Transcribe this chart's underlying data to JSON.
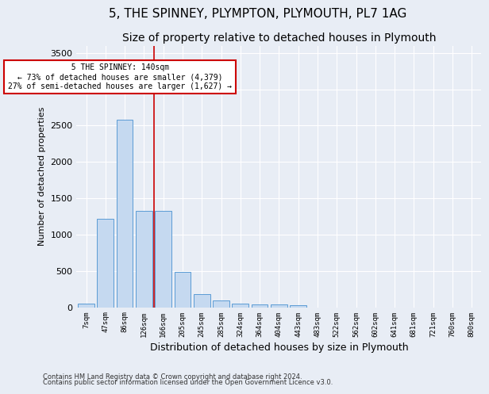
{
  "title1": "5, THE SPINNEY, PLYMPTON, PLYMOUTH, PL7 1AG",
  "title2": "Size of property relative to detached houses in Plymouth",
  "xlabel": "Distribution of detached houses by size in Plymouth",
  "ylabel": "Number of detached properties",
  "bar_labels": [
    "7sqm",
    "47sqm",
    "86sqm",
    "126sqm",
    "166sqm",
    "205sqm",
    "245sqm",
    "285sqm",
    "324sqm",
    "364sqm",
    "404sqm",
    "443sqm",
    "483sqm",
    "522sqm",
    "562sqm",
    "602sqm",
    "641sqm",
    "681sqm",
    "721sqm",
    "760sqm",
    "800sqm"
  ],
  "bar_values": [
    50,
    1220,
    2580,
    1330,
    1330,
    490,
    185,
    95,
    45,
    40,
    40,
    30,
    0,
    0,
    0,
    0,
    0,
    0,
    0,
    0,
    0
  ],
  "bar_color": "#c5d9f0",
  "bar_edge_color": "#5b9bd5",
  "vline_x_index": 3.5,
  "annotation_text": "  5 THE SPINNEY: 140sqm  \n← 73% of detached houses are smaller (4,379)\n27% of semi-detached houses are larger (1,627) →",
  "annotation_box_color": "#ffffff",
  "annotation_box_edge_color": "#cc0000",
  "vline_color": "#cc0000",
  "ylim": [
    0,
    3600
  ],
  "yticks": [
    0,
    500,
    1000,
    1500,
    2000,
    2500,
    3000,
    3500
  ],
  "footer1": "Contains HM Land Registry data © Crown copyright and database right 2024.",
  "footer2": "Contains public sector information licensed under the Open Government Licence v3.0.",
  "bg_color": "#e8edf5",
  "plot_bg_color": "#e8edf5",
  "grid_color": "#ffffff",
  "title1_fontsize": 11,
  "title2_fontsize": 10
}
